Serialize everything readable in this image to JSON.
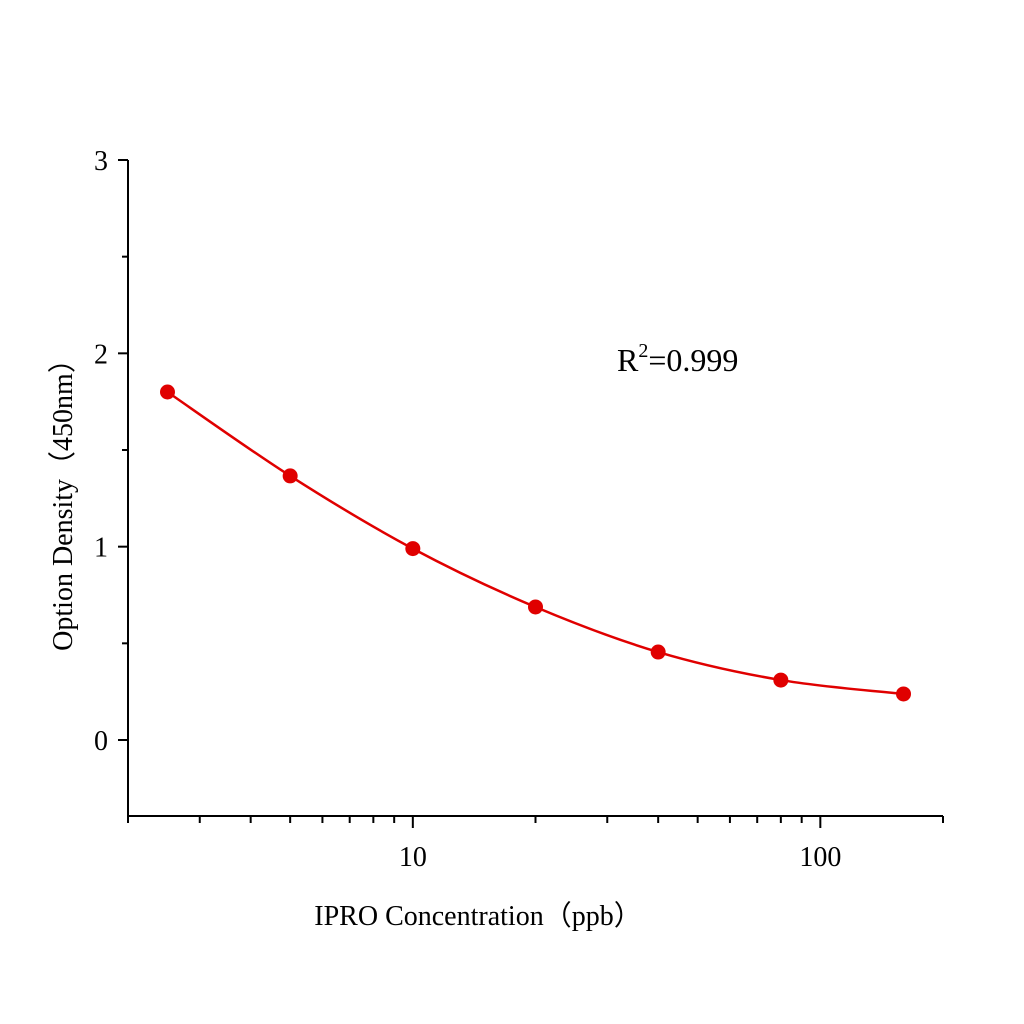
{
  "chart_data": {
    "type": "scatter",
    "xlabel": "IPRO  Concentration（ppb）",
    "ylabel": "Option Density（450nm）",
    "x_scale": "log",
    "xlim": [
      2,
      200
    ],
    "ylim": [
      -0.4,
      3
    ],
    "x_ticks": [
      10,
      100
    ],
    "x_tick_labels": [
      "10",
      "100"
    ],
    "y_ticks": [
      0,
      1,
      2,
      3
    ],
    "y_tick_labels": [
      "0",
      "1",
      "2",
      "3"
    ],
    "grid": false,
    "annotation": {
      "base": "R",
      "sup": "2",
      "rest": "=0.999"
    },
    "series": [
      {
        "x": [
          2.5,
          5,
          10,
          20,
          40,
          80,
          160
        ],
        "y": [
          1.8,
          1.366,
          0.99,
          0.688,
          0.455,
          0.31,
          0.238
        ],
        "color": "#e00000",
        "fit_line": true
      }
    ]
  }
}
